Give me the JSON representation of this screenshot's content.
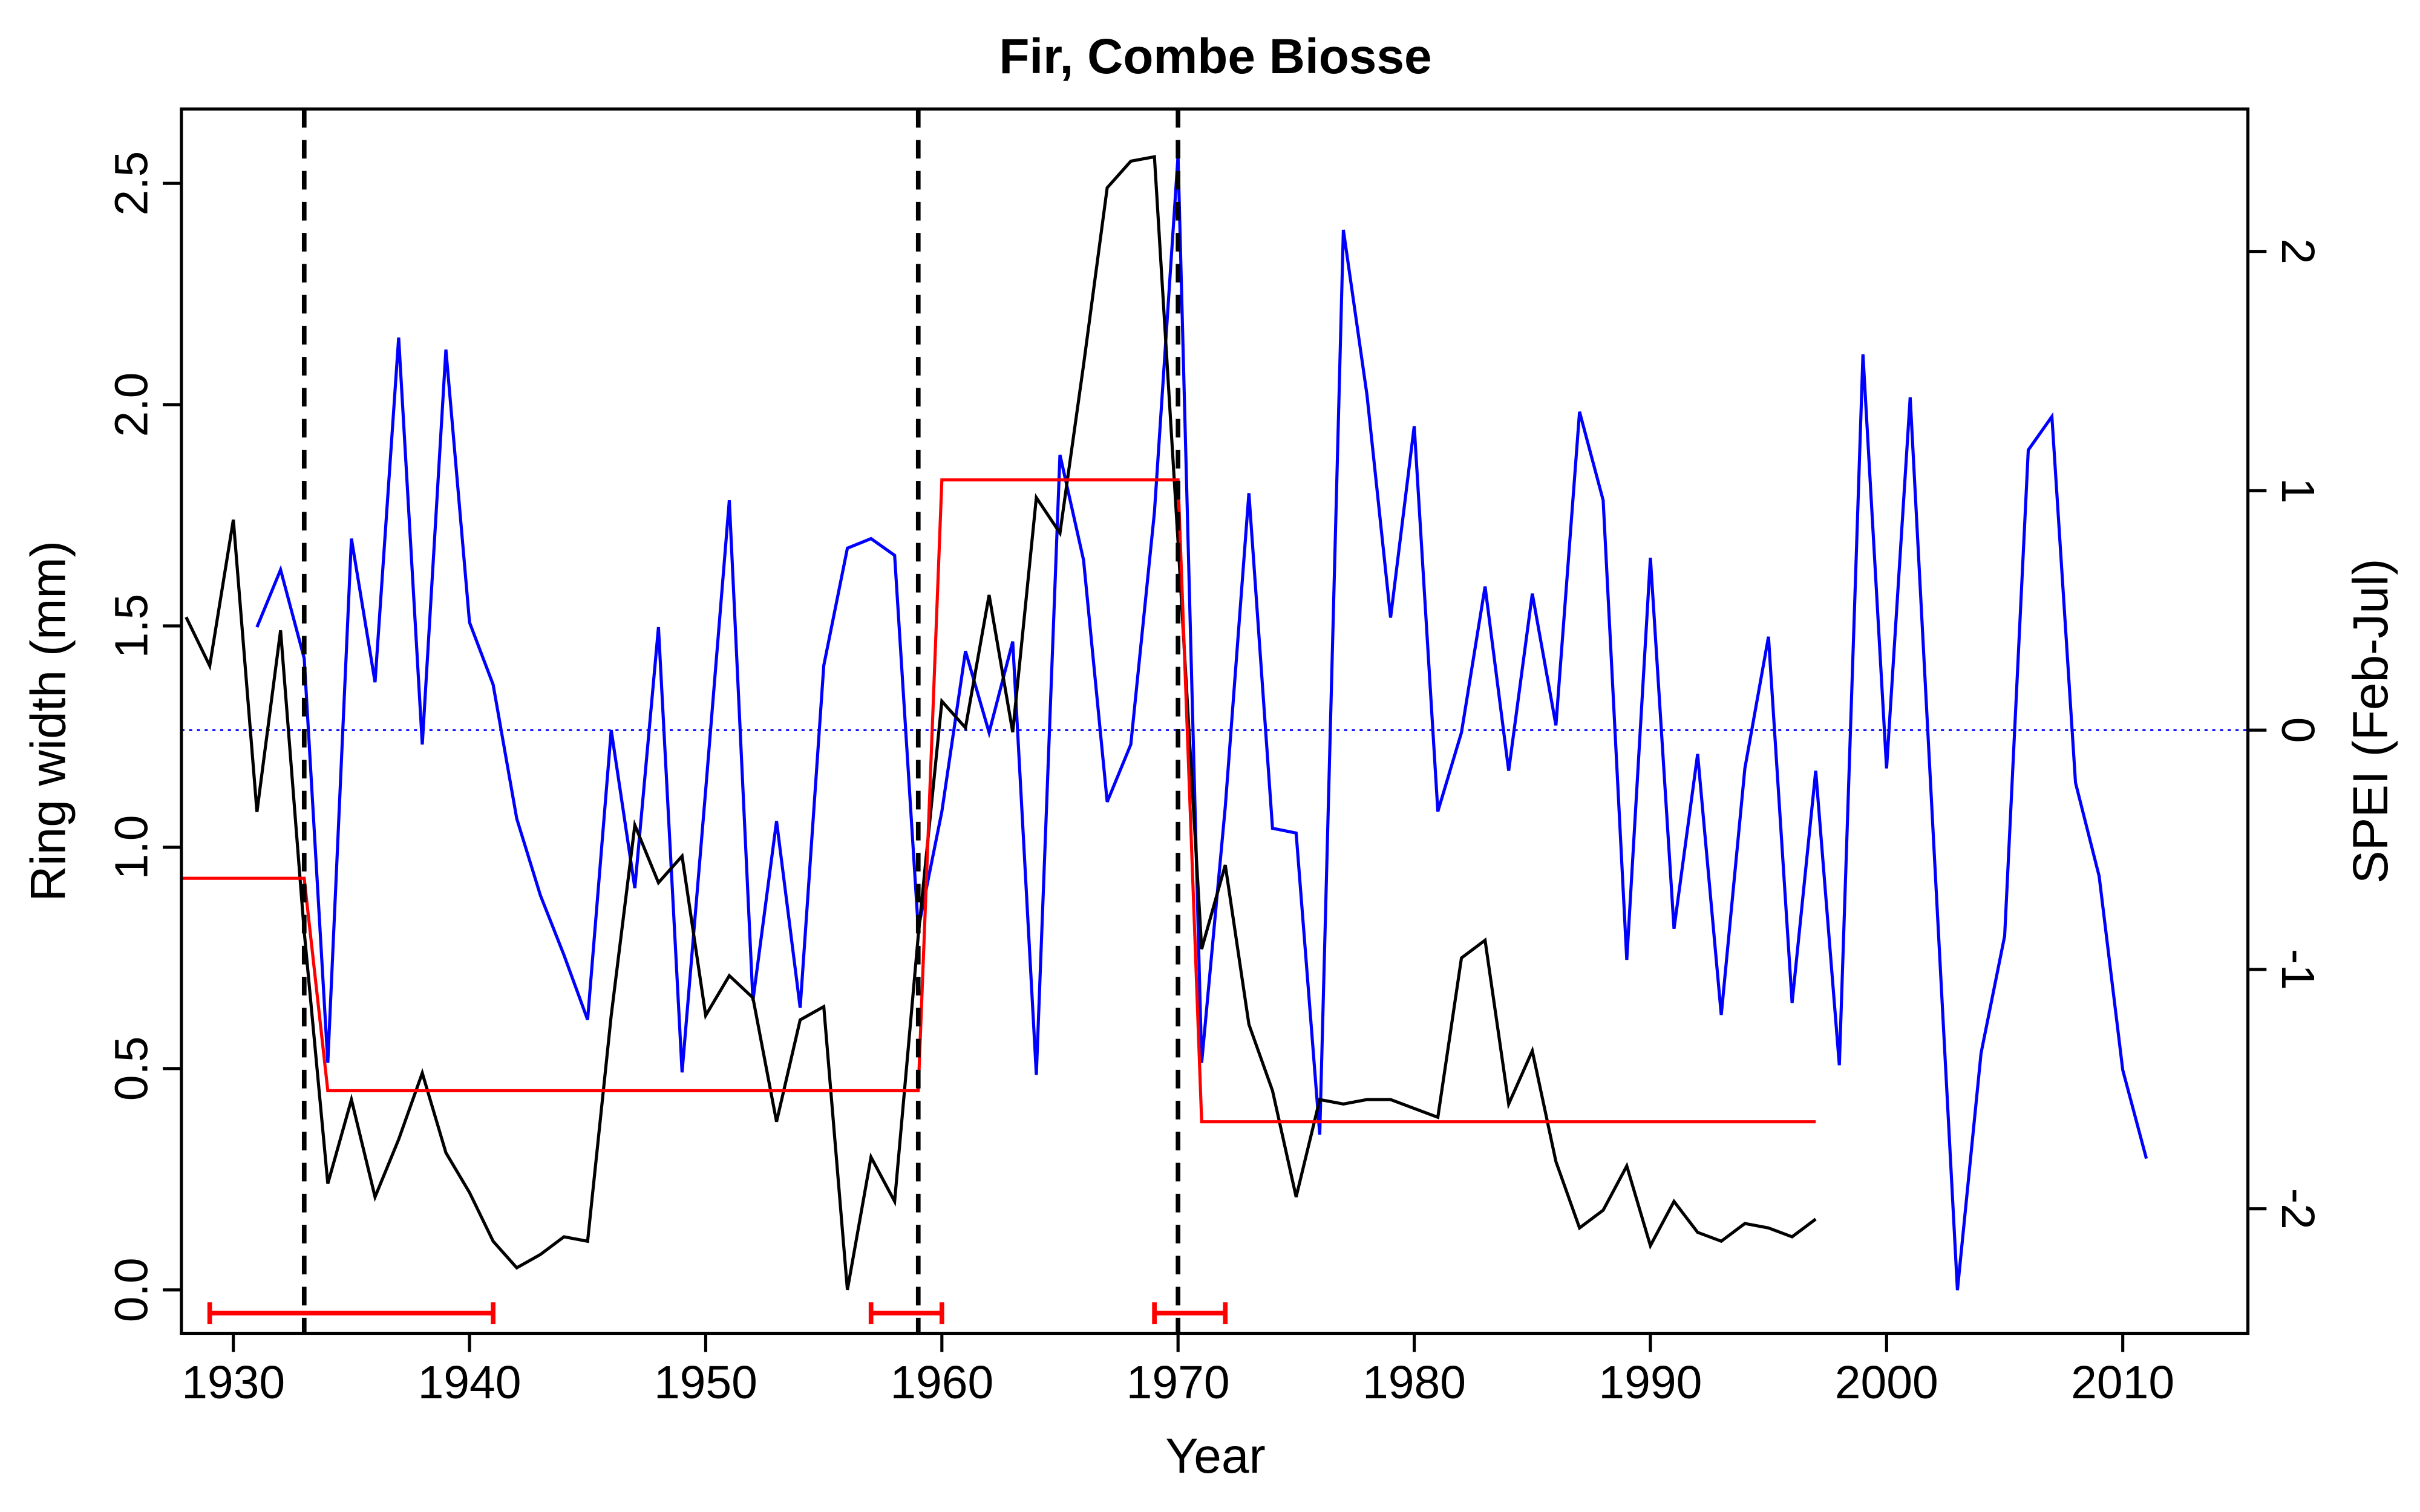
{
  "chart_data": {
    "type": "line",
    "title": "Fir, Combe Biosse",
    "xlabel": "Year",
    "ylabel": "Ring width (mm)",
    "ylabel_right": "SPEI (Feb-Jul)",
    "xlim": [
      1927.8,
      2015.3
    ],
    "ylim": [
      -0.098,
      2.668
    ],
    "ylim_right": [
      -2.52,
      2.595
    ],
    "x_ticks": [
      1930,
      1940,
      1950,
      1960,
      1970,
      1980,
      1990,
      2000,
      2010
    ],
    "y_ticks": [
      "0.0",
      "0.5",
      "1.0",
      "1.5",
      "2.0",
      "2.5"
    ],
    "y_ticks_right": [
      "-2",
      "-1",
      "0",
      "1",
      "2"
    ],
    "colors": {
      "ring": "#000000",
      "spei": "#0000ff",
      "regime": "#ff0000",
      "breaks": "#000000"
    },
    "series": [
      {
        "name": "Ring width",
        "axis": "left",
        "x_start": 1928,
        "values": [
          1.52,
          1.41,
          1.74,
          1.08,
          1.49,
          0.81,
          0.24,
          0.43,
          0.21,
          0.34,
          0.49,
          0.31,
          0.22,
          0.11,
          0.05,
          0.08,
          0.12,
          0.11,
          0.62,
          1.05,
          0.92,
          0.98,
          0.62,
          0.71,
          0.66,
          0.38,
          0.61,
          0.64,
          0.0,
          0.3,
          0.2,
          0.8,
          1.33,
          1.27,
          1.57,
          1.26,
          1.79,
          1.71,
          2.09,
          2.49,
          2.55,
          2.56,
          1.69,
          0.77,
          0.96,
          0.6,
          0.45,
          0.21,
          0.43,
          0.42,
          0.43,
          0.43,
          0.41,
          0.39,
          0.75,
          0.79,
          0.42,
          0.54,
          0.29,
          0.14,
          0.18,
          0.28,
          0.1,
          0.2,
          0.13,
          0.11,
          0.15,
          0.14,
          0.12,
          0.16
        ]
      },
      {
        "name": "SPEI (Feb-Jul)",
        "axis": "right",
        "x_start": 1931,
        "values": [
          0.43,
          0.67,
          0.3,
          -1.39,
          0.8,
          0.2,
          1.64,
          -0.06,
          1.59,
          0.45,
          0.19,
          -0.37,
          -0.69,
          -0.94,
          -1.21,
          0.0,
          -0.66,
          0.43,
          -1.43,
          -0.25,
          0.96,
          -1.13,
          -0.38,
          -1.16,
          0.27,
          0.76,
          0.8,
          0.73,
          -0.83,
          -0.34,
          0.33,
          -0.01,
          0.37,
          -1.44,
          1.15,
          0.71,
          -0.3,
          -0.06,
          0.91,
          2.4,
          -1.39,
          -0.32,
          0.99,
          -0.41,
          -0.43,
          -1.69,
          2.09,
          1.4,
          0.47,
          1.27,
          -0.34,
          -0.01,
          0.6,
          -0.17,
          0.57,
          0.02,
          1.33,
          0.96,
          -0.96,
          0.72,
          -0.83,
          -0.1,
          -1.19,
          -0.16,
          0.39,
          -1.14,
          -0.17,
          -1.4,
          1.57,
          -0.16,
          1.39,
          -0.48,
          -2.34,
          -1.35,
          -0.86,
          1.17,
          1.31,
          -0.22,
          -0.61,
          -1.42,
          -1.79
        ]
      },
      {
        "name": "Regime mean",
        "axis": "left",
        "points": [
          [
            1927.8,
            0.93
          ],
          [
            1933,
            0.93
          ],
          [
            1934,
            0.45
          ],
          [
            1959,
            0.45
          ],
          [
            1960,
            1.83
          ],
          [
            1970,
            1.83
          ],
          [
            1971,
            0.38
          ],
          [
            1997,
            0.38
          ]
        ]
      }
    ],
    "spei_reference_line": 0,
    "breakpoints": [
      1933,
      1959,
      1970
    ],
    "breakpoint_intervals": [
      [
        1929,
        1941
      ],
      [
        1957,
        1960
      ],
      [
        1969,
        1972
      ]
    ]
  }
}
